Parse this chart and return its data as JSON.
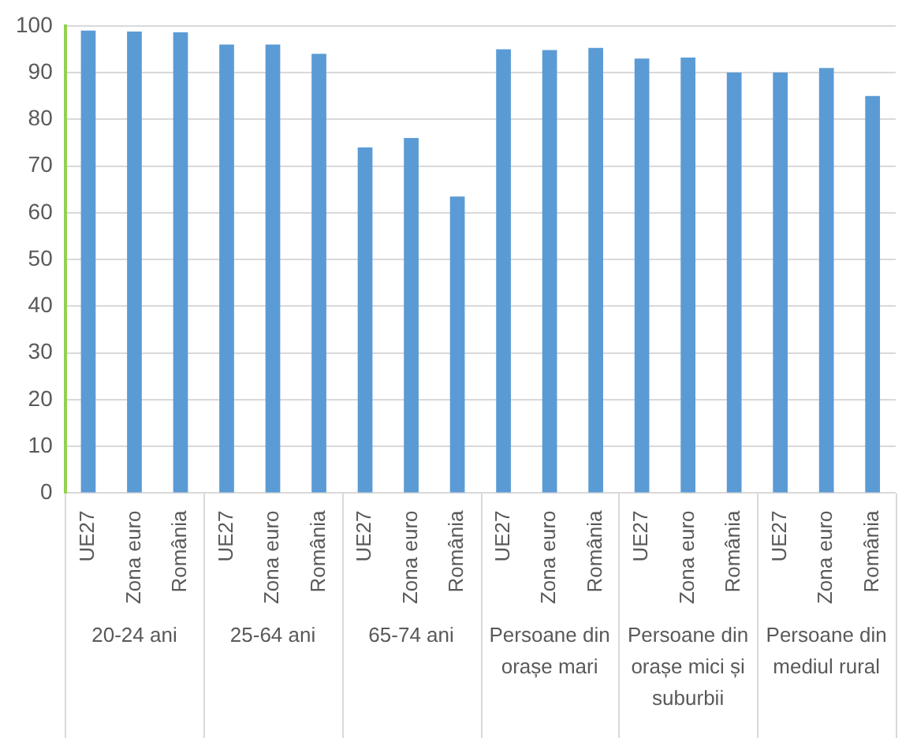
{
  "chart_data": {
    "type": "bar",
    "categories": [
      "UE27",
      "Zona euro",
      "România",
      "UE27",
      "Zona euro",
      "România",
      "UE27",
      "Zona euro",
      "România",
      "UE27",
      "Zona euro",
      "România",
      "UE27",
      "Zona euro",
      "România",
      "UE27",
      "Zona euro",
      "România"
    ],
    "values": [
      99,
      98.8,
      98.6,
      96,
      96,
      94,
      74,
      76,
      63.5,
      95,
      94.8,
      95.3,
      93,
      93.2,
      90,
      90,
      91,
      85
    ],
    "color": "#5b9bd5",
    "annotations": [
      "20-24 ani",
      "25-64 ani",
      "65-74 ani",
      "Persoane din orașe mari",
      "Persoane din orașe mici și suburbii",
      "Persoane din mediul rural"
    ],
    "ylim": [
      0,
      100
    ],
    "yticks": [
      0,
      10,
      20,
      30,
      40,
      50,
      60,
      70,
      80,
      90,
      100
    ],
    "grid": "y",
    "legend": false
  }
}
